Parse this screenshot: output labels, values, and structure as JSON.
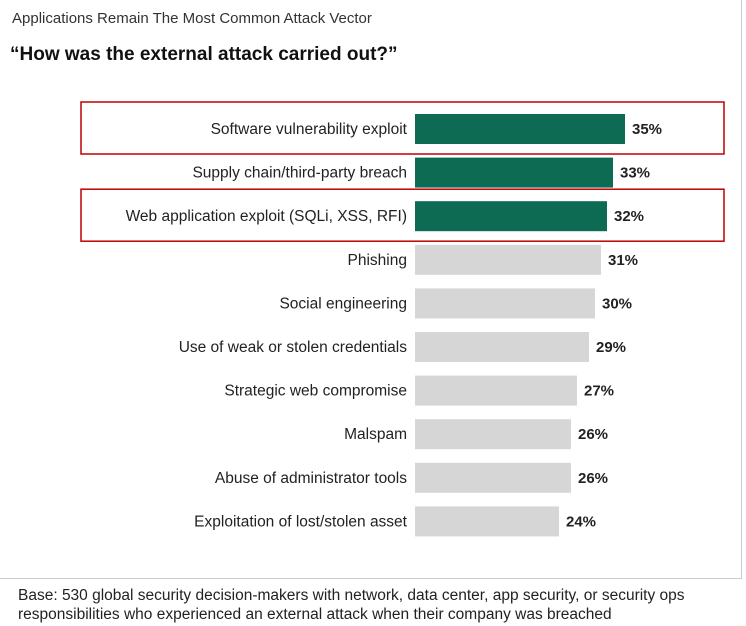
{
  "header": "Applications Remain The Most Common Attack Vector",
  "question": "“How was the external attack carried out?”",
  "footnote": "Base: 530 global security decision-makers with network, data center, app security, or security ops responsibilities who experienced an external attack when their company was breached",
  "colors": {
    "highlight": "#0d6b54",
    "normal": "#d6d6d6",
    "outline": "#c00000"
  },
  "chart_data": {
    "type": "bar",
    "orientation": "horizontal",
    "title": "“How was the external attack carried out?”",
    "categories": [
      "Software vulnerability exploit",
      "Supply chain/third-party breach",
      "Web application exploit (SQLi, XSS, RFI)",
      "Phishing",
      "Social engineering",
      "Use of weak or stolen credentials",
      "Strategic web compromise",
      "Malspam",
      "Abuse of administrator tools",
      "Exploitation of lost/stolen asset"
    ],
    "values": [
      35,
      33,
      32,
      31,
      30,
      29,
      27,
      26,
      26,
      24
    ],
    "value_labels": [
      "35%",
      "33%",
      "32%",
      "31%",
      "30%",
      "29%",
      "27%",
      "26%",
      "26%",
      "24%"
    ],
    "highlighted": [
      true,
      true,
      true,
      false,
      false,
      false,
      false,
      false,
      false,
      false
    ],
    "outlined": [
      true,
      false,
      true,
      false,
      false,
      false,
      false,
      false,
      false,
      false
    ],
    "xlim": [
      0,
      35
    ],
    "grid": false,
    "legend": "none"
  }
}
